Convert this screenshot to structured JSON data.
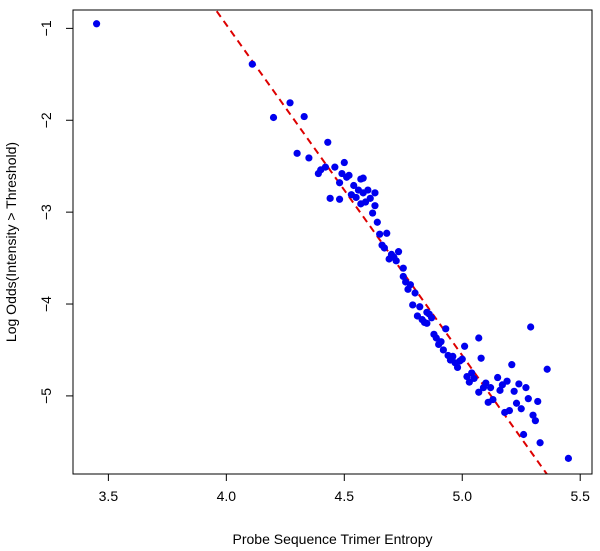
{
  "chart_data": {
    "type": "scatter",
    "title": "",
    "xlabel": "Probe Sequence Trimer Entropy",
    "ylabel": "Log Odds(Intensity > Threshold)",
    "xlim": [
      3.35,
      5.55
    ],
    "ylim": [
      -5.85,
      -0.8
    ],
    "x_ticks": [
      3.5,
      4.0,
      4.5,
      5.0,
      5.5
    ],
    "x_tick_labels": [
      "3.5",
      "4.0",
      "4.5",
      "5.0",
      "5.5"
    ],
    "y_ticks": [
      -1,
      -2,
      -3,
      -4,
      -5
    ],
    "y_tick_labels": [
      "−1",
      "−2",
      "−3",
      "−4",
      "−5"
    ],
    "grid": false,
    "legend": "none",
    "series": [
      {
        "color": "#0000ee",
        "marker": "filled-circle",
        "points": [
          [
            3.45,
            -0.95
          ],
          [
            4.11,
            -1.39
          ],
          [
            4.2,
            -1.97
          ],
          [
            4.27,
            -1.81
          ],
          [
            4.3,
            -2.36
          ],
          [
            4.33,
            -1.96
          ],
          [
            4.35,
            -2.41
          ],
          [
            4.39,
            -2.58
          ],
          [
            4.4,
            -2.54
          ],
          [
            4.42,
            -2.51
          ],
          [
            4.43,
            -2.24
          ],
          [
            4.44,
            -2.85
          ],
          [
            4.46,
            -2.51
          ],
          [
            4.48,
            -2.86
          ],
          [
            4.48,
            -2.68
          ],
          [
            4.49,
            -2.58
          ],
          [
            4.5,
            -2.46
          ],
          [
            4.51,
            -2.62
          ],
          [
            4.52,
            -2.6
          ],
          [
            4.53,
            -2.81
          ],
          [
            4.54,
            -2.71
          ],
          [
            4.55,
            -2.84
          ],
          [
            4.56,
            -2.76
          ],
          [
            4.57,
            -2.91
          ],
          [
            4.57,
            -2.64
          ],
          [
            4.58,
            -2.79
          ],
          [
            4.58,
            -2.63
          ],
          [
            4.59,
            -2.89
          ],
          [
            4.6,
            -2.76
          ],
          [
            4.61,
            -2.85
          ],
          [
            4.62,
            -3.01
          ],
          [
            4.63,
            -2.79
          ],
          [
            4.63,
            -2.93
          ],
          [
            4.64,
            -3.11
          ],
          [
            4.65,
            -3.24
          ],
          [
            4.66,
            -3.36
          ],
          [
            4.67,
            -3.39
          ],
          [
            4.68,
            -3.23
          ],
          [
            4.69,
            -3.51
          ],
          [
            4.7,
            -3.46
          ],
          [
            4.71,
            -3.49
          ],
          [
            4.72,
            -3.53
          ],
          [
            4.73,
            -3.43
          ],
          [
            4.75,
            -3.61
          ],
          [
            4.75,
            -3.7
          ],
          [
            4.76,
            -3.76
          ],
          [
            4.77,
            -3.84
          ],
          [
            4.78,
            -3.79
          ],
          [
            4.79,
            -4.01
          ],
          [
            4.8,
            -3.88
          ],
          [
            4.81,
            -4.13
          ],
          [
            4.82,
            -4.03
          ],
          [
            4.83,
            -4.17
          ],
          [
            4.84,
            -4.2
          ],
          [
            4.85,
            -4.21
          ],
          [
            4.85,
            -4.09
          ],
          [
            4.86,
            -4.11
          ],
          [
            4.87,
            -4.15
          ],
          [
            4.88,
            -4.33
          ],
          [
            4.89,
            -4.37
          ],
          [
            4.9,
            -4.44
          ],
          [
            4.91,
            -4.41
          ],
          [
            4.92,
            -4.5
          ],
          [
            4.93,
            -4.27
          ],
          [
            4.94,
            -4.56
          ],
          [
            4.95,
            -4.61
          ],
          [
            4.96,
            -4.57
          ],
          [
            4.97,
            -4.64
          ],
          [
            4.98,
            -4.69
          ],
          [
            4.99,
            -4.62
          ],
          [
            5.0,
            -4.6
          ],
          [
            5.01,
            -4.46
          ],
          [
            5.02,
            -4.79
          ],
          [
            5.03,
            -4.85
          ],
          [
            5.04,
            -4.75
          ],
          [
            5.05,
            -4.81
          ],
          [
            5.07,
            -4.37
          ],
          [
            5.07,
            -4.96
          ],
          [
            5.08,
            -4.59
          ],
          [
            5.09,
            -4.91
          ],
          [
            5.1,
            -4.86
          ],
          [
            5.11,
            -5.07
          ],
          [
            5.12,
            -4.91
          ],
          [
            5.13,
            -5.04
          ],
          [
            5.15,
            -4.8
          ],
          [
            5.16,
            -4.94
          ],
          [
            5.17,
            -4.88
          ],
          [
            5.18,
            -5.18
          ],
          [
            5.19,
            -4.84
          ],
          [
            5.2,
            -5.16
          ],
          [
            5.21,
            -4.66
          ],
          [
            5.22,
            -4.95
          ],
          [
            5.23,
            -5.08
          ],
          [
            5.24,
            -4.87
          ],
          [
            5.25,
            -5.14
          ],
          [
            5.26,
            -5.42
          ],
          [
            5.27,
            -4.91
          ],
          [
            5.28,
            -5.03
          ],
          [
            5.29,
            -4.25
          ],
          [
            5.3,
            -5.21
          ],
          [
            5.31,
            -5.27
          ],
          [
            5.32,
            -5.06
          ],
          [
            5.33,
            -5.51
          ],
          [
            5.36,
            -4.71
          ],
          [
            5.45,
            -5.68
          ]
        ]
      }
    ],
    "fit_line": {
      "color": "#dd0000",
      "style": "dashed",
      "points": [
        [
          3.9,
          -0.6
        ],
        [
          5.4,
          -6.0
        ]
      ]
    }
  }
}
